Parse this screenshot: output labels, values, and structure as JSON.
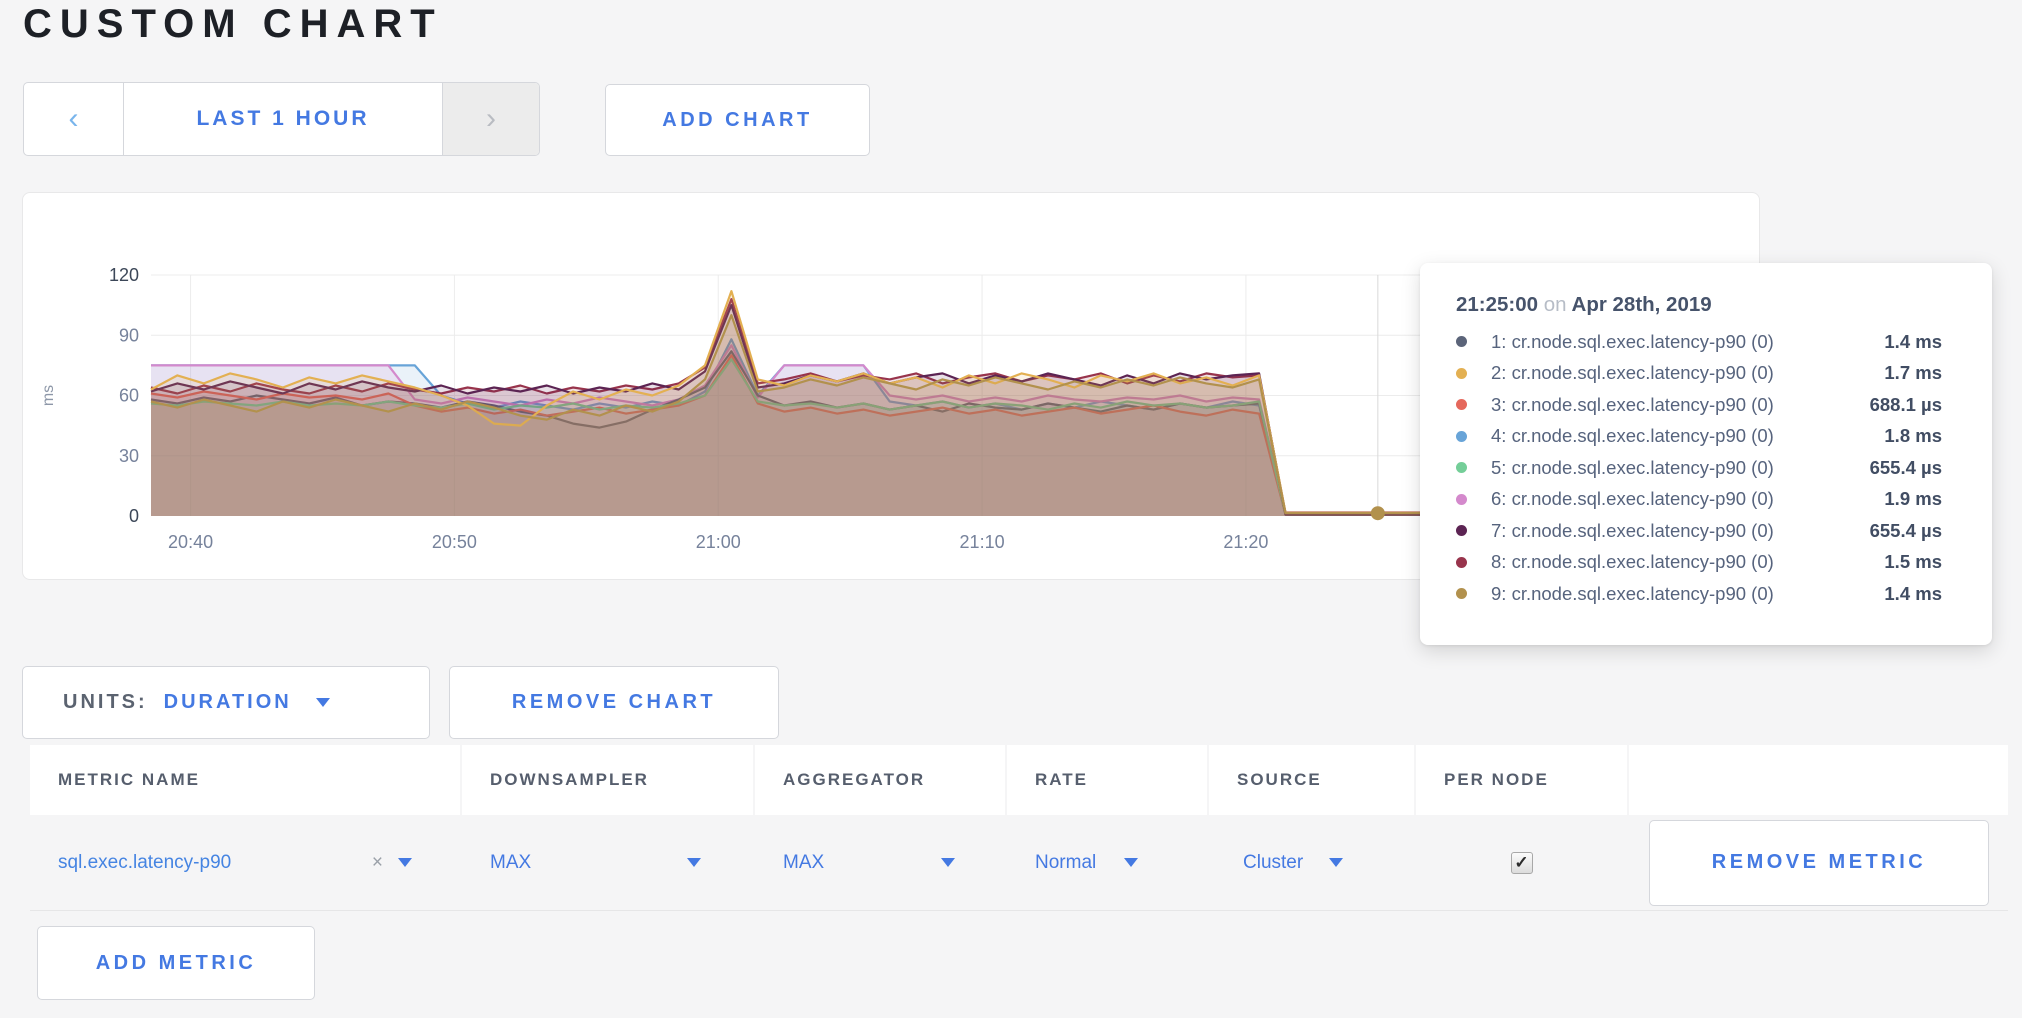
{
  "page": {
    "title": "CUSTOM CHART"
  },
  "toolbar": {
    "prev_icon": "‹",
    "time_range": "LAST 1 HOUR",
    "next_icon": "›",
    "add_chart": "ADD CHART"
  },
  "controls": {
    "units_label": "UNITS:",
    "units_value": "DURATION",
    "remove_chart": "REMOVE CHART",
    "remove_metric": "REMOVE METRIC",
    "add_metric": "ADD METRIC"
  },
  "tooltip": {
    "time": "21:25:00",
    "on_word": "on",
    "date": "Apr 28th, 2019"
  },
  "table": {
    "headers": [
      "METRIC NAME",
      "DOWNSAMPLER",
      "AGGREGATOR",
      "RATE",
      "SOURCE",
      "PER NODE",
      ""
    ],
    "row": {
      "metric_name": "sql.exec.latency-p90",
      "close_icon": "×",
      "downsampler": "MAX",
      "aggregator": "MAX",
      "rate": "Normal",
      "source": "Cluster",
      "per_node_checked": true,
      "check_icon": "✓"
    }
  },
  "chart_data": {
    "type": "area",
    "title": "",
    "xlabel": "",
    "ylabel": "ms",
    "ylim": [
      0,
      120
    ],
    "y_ticks": [
      0,
      30,
      60,
      90,
      120
    ],
    "x_domain": [
      38.5,
      98.5
    ],
    "x_step_min": 1,
    "x_ticks": [
      {
        "t": 40,
        "label": "20:40"
      },
      {
        "t": 50,
        "label": "20:50"
      },
      {
        "t": 60,
        "label": "21:00"
      },
      {
        "t": 70,
        "label": "21:10"
      },
      {
        "t": 80,
        "label": "21:20"
      }
    ],
    "grid": true,
    "crosshair_t": 85,
    "hover_marker": {
      "series": 9,
      "value_ms": 1.4
    },
    "series": [
      {
        "name": "cr.node.sql.exec.latency-p90",
        "node": 1,
        "color": "#5b6479",
        "legend_label": "1: cr.node.sql.exec.latency-p90 (0)",
        "value_label": "1.4 ms",
        "values": [
          58,
          56,
          59,
          57,
          60,
          58,
          56,
          59,
          55,
          57,
          56,
          54,
          57,
          55,
          52,
          50,
          46,
          44,
          47,
          53,
          58,
          64,
          82,
          60,
          55,
          57,
          54,
          56,
          53,
          55,
          52,
          56,
          54,
          53,
          56,
          54,
          52,
          55,
          53,
          56,
          54,
          55,
          56,
          1.4,
          1.4,
          1.4,
          1.4,
          1.4,
          1.4,
          1.4,
          1.4,
          1.4,
          1.4,
          1.4,
          1.4,
          1.4,
          1.4,
          1.4,
          1.4,
          1.4,
          1.4
        ]
      },
      {
        "name": "cr.node.sql.exec.latency-p90",
        "node": 2,
        "color": "#e3b052",
        "legend_label": "2: cr.node.sql.exec.latency-p90 (0)",
        "value_label": "1.7 ms",
        "values": [
          63,
          70,
          66,
          71,
          68,
          64,
          69,
          66,
          70,
          67,
          64,
          60,
          55,
          46,
          45,
          55,
          62,
          58,
          63,
          60,
          65,
          75,
          112,
          68,
          65,
          70,
          67,
          71,
          66,
          69,
          64,
          70,
          66,
          71,
          68,
          64,
          70,
          67,
          71,
          66,
          69,
          65,
          70,
          1.7,
          1.7,
          1.7,
          1.7,
          1.7,
          1.7,
          1.7,
          1.7,
          1.7,
          1.7,
          1.7,
          1.7,
          1.7,
          1.7,
          1.7,
          1.7,
          1.7,
          1.7
        ]
      },
      {
        "name": "cr.node.sql.exec.latency-p90",
        "node": 3,
        "color": "#e5685c",
        "legend_label": "3: cr.node.sql.exec.latency-p90 (0)",
        "value_label": "688.1 µs",
        "values": [
          61,
          59,
          62,
          60,
          58,
          61,
          59,
          60,
          58,
          61,
          55,
          52,
          54,
          51,
          53,
          50,
          52,
          54,
          51,
          53,
          55,
          60,
          80,
          56,
          52,
          54,
          51,
          53,
          50,
          52,
          54,
          51,
          53,
          50,
          52,
          54,
          51,
          53,
          55,
          52,
          50,
          53,
          51,
          0.69,
          0.69,
          0.69,
          0.69,
          0.69,
          0.69,
          0.69,
          0.69,
          0.69,
          0.69,
          0.69,
          0.69,
          0.69,
          0.69,
          0.69,
          0.69,
          0.69,
          0.69
        ]
      },
      {
        "name": "cr.node.sql.exec.latency-p90",
        "node": 4,
        "color": "#68a4d8",
        "legend_label": "4: cr.node.sql.exec.latency-p90 (0)",
        "value_label": "1.8 ms",
        "values": [
          75,
          75,
          75,
          75,
          75,
          75,
          75,
          75,
          75,
          75,
          75,
          60,
          56,
          54,
          57,
          55,
          53,
          56,
          54,
          57,
          55,
          62,
          88,
          60,
          75,
          75,
          75,
          75,
          57,
          55,
          57,
          54,
          56,
          53,
          56,
          54,
          57,
          55,
          53,
          56,
          54,
          57,
          55,
          1.8,
          1.8,
          1.8,
          1.8,
          1.8,
          1.8,
          1.8,
          1.8,
          1.8,
          1.8,
          1.8,
          1.8,
          1.8,
          1.8,
          1.8,
          1.8,
          1.8,
          1.8
        ]
      },
      {
        "name": "cr.node.sql.exec.latency-p90",
        "node": 5,
        "color": "#74ce98",
        "legend_label": "5: cr.node.sql.exec.latency-p90 (0)",
        "value_label": "655.4 µs",
        "values": [
          56,
          55,
          57,
          56,
          55,
          57,
          55,
          56,
          55,
          57,
          55,
          54,
          56,
          53,
          55,
          54,
          56,
          53,
          55,
          54,
          56,
          60,
          78,
          57,
          55,
          56,
          54,
          56,
          53,
          55,
          57,
          54,
          56,
          55,
          53,
          56,
          54,
          57,
          55,
          56,
          54,
          55,
          57,
          0.66,
          0.66,
          0.66,
          0.66,
          0.66,
          0.66,
          0.66,
          0.66,
          0.66,
          0.66,
          0.66,
          0.66,
          0.66,
          0.66,
          0.66,
          0.66,
          0.66,
          0.66
        ]
      },
      {
        "name": "cr.node.sql.exec.latency-p90",
        "node": 6,
        "color": "#d489cc",
        "legend_label": "6: cr.node.sql.exec.latency-p90 (0)",
        "value_label": "1.9 ms",
        "values": [
          75,
          75,
          75,
          75,
          75,
          75,
          75,
          75,
          75,
          75,
          58,
          56,
          59,
          57,
          55,
          58,
          56,
          59,
          57,
          55,
          58,
          65,
          85,
          59,
          75,
          75,
          75,
          75,
          60,
          58,
          60,
          57,
          59,
          57,
          60,
          58,
          57,
          59,
          58,
          60,
          57,
          59,
          58,
          1.9,
          1.9,
          1.9,
          1.9,
          1.9,
          1.9,
          1.9,
          1.9,
          1.9,
          1.9,
          1.9,
          1.9,
          1.9,
          1.9,
          1.9,
          1.9,
          1.9,
          1.9
        ]
      },
      {
        "name": "cr.node.sql.exec.latency-p90",
        "node": 7,
        "color": "#5c2453",
        "legend_label": "7: cr.node.sql.exec.latency-p90 (0)",
        "value_label": "655.4 µs",
        "values": [
          62,
          66,
          63,
          67,
          64,
          61,
          66,
          63,
          67,
          64,
          62,
          65,
          61,
          64,
          62,
          65,
          61,
          64,
          62,
          66,
          63,
          72,
          105,
          64,
          66,
          70,
          67,
          71,
          66,
          69,
          71,
          66,
          70,
          67,
          71,
          68,
          65,
          70,
          66,
          71,
          68,
          70,
          71,
          0.66,
          0.66,
          0.66,
          0.66,
          0.66,
          0.66,
          0.66,
          0.66,
          0.66,
          0.66,
          0.66,
          0.66,
          0.66,
          0.66,
          0.66,
          0.66,
          0.66,
          0.66
        ]
      },
      {
        "name": "cr.node.sql.exec.latency-p90",
        "node": 8,
        "color": "#98344c",
        "legend_label": "8: cr.node.sql.exec.latency-p90 (0)",
        "value_label": "1.5 ms",
        "values": [
          64,
          61,
          65,
          62,
          66,
          63,
          61,
          65,
          62,
          66,
          63,
          61,
          64,
          62,
          65,
          61,
          64,
          62,
          65,
          63,
          66,
          74,
          108,
          66,
          68,
          71,
          67,
          70,
          68,
          71,
          66,
          69,
          71,
          67,
          70,
          68,
          71,
          66,
          70,
          67,
          71,
          69,
          70,
          1.5,
          1.5,
          1.5,
          1.5,
          1.5,
          1.5,
          1.5,
          1.5,
          1.5,
          1.5,
          1.5,
          1.5,
          1.5,
          1.5,
          1.5,
          1.5,
          1.5,
          1.5
        ]
      },
      {
        "name": "cr.node.sql.exec.latency-p90",
        "node": 9,
        "color": "#b2914d",
        "legend_label": "9: cr.node.sql.exec.latency-p90 (0)",
        "value_label": "1.4 ms",
        "values": [
          57,
          54,
          58,
          55,
          52,
          57,
          54,
          58,
          55,
          52,
          56,
          53,
          57,
          54,
          50,
          48,
          53,
          50,
          55,
          52,
          57,
          68,
          100,
          62,
          64,
          68,
          65,
          69,
          66,
          63,
          68,
          65,
          69,
          66,
          63,
          67,
          64,
          68,
          65,
          69,
          66,
          64,
          68,
          1.4,
          1.4,
          1.4,
          1.4,
          1.4,
          1.4,
          1.4,
          1.4,
          1.4,
          1.4,
          1.4,
          1.4,
          1.4,
          1.4,
          1.4,
          1.4,
          1.4,
          1.4
        ]
      }
    ]
  }
}
